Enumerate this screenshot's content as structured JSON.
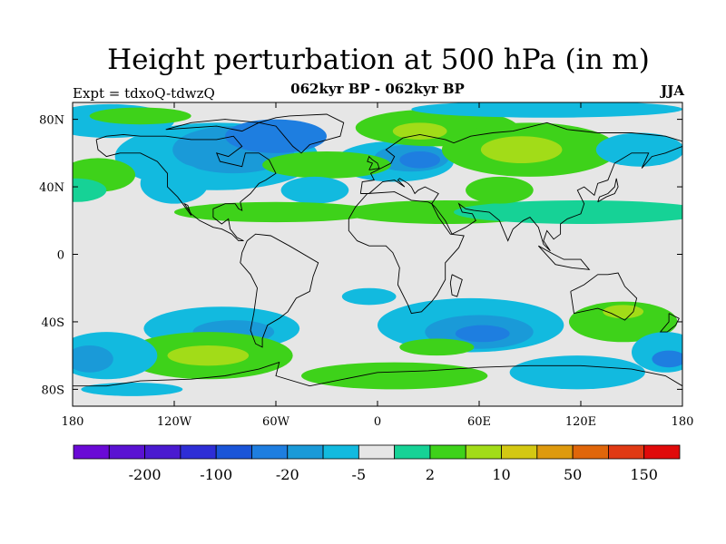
{
  "title": "Height perturbation at 500 hPa (in m)",
  "subtitle": "062kyr BP - 062kyr BP",
  "left_label": "Expt = tdxoQ-tdwzQ",
  "right_label": "JJA",
  "axes": {
    "lon_ticks": [
      {
        "lon": -180,
        "label": "180"
      },
      {
        "lon": -120,
        "label": "120W"
      },
      {
        "lon": -60,
        "label": "60W"
      },
      {
        "lon": 0,
        "label": "0"
      },
      {
        "lon": 60,
        "label": "60E"
      },
      {
        "lon": 120,
        "label": "120E"
      },
      {
        "lon": 180,
        "label": "180"
      }
    ],
    "lat_ticks": [
      {
        "lat": 80,
        "label": "80N"
      },
      {
        "lat": 40,
        "label": "40N"
      },
      {
        "lat": 0,
        "label": "0"
      },
      {
        "lat": -40,
        "label": "40S"
      },
      {
        "lat": -80,
        "label": "80S"
      }
    ],
    "lon_range": [
      -180,
      180
    ],
    "lat_range": [
      -90,
      90
    ]
  },
  "colorbar": {
    "colors": [
      "#6a0ad6",
      "#5a12d2",
      "#4a1ad0",
      "#2e2ed6",
      "#1a55d8",
      "#1e7ee0",
      "#1a9ad8",
      "#12badf",
      "#e6e6e6",
      "#16d296",
      "#3ed21a",
      "#a2dc18",
      "#d4c812",
      "#de9a0e",
      "#e0660a",
      "#e03a14",
      "#e00a0a"
    ],
    "labels": [
      {
        "after_box": 2,
        "text": "-200"
      },
      {
        "after_box": 4,
        "text": "-100"
      },
      {
        "after_box": 6,
        "text": "-20"
      },
      {
        "after_box": 8,
        "text": "-5"
      },
      {
        "after_box": 10,
        "text": "2"
      },
      {
        "after_box": 12,
        "text": "10"
      },
      {
        "after_box": 14,
        "text": "50"
      },
      {
        "after_box": 16,
        "text": "150"
      }
    ]
  },
  "fields": {
    "background": "#e6e6e6",
    "neg_light": "#12badf",
    "neg_mid": "#1a9ad8",
    "neg_dark": "#1e7ee0",
    "neg_darker": "#1a55d8",
    "pos_light": "#16d296",
    "pos_mid": "#3ed21a",
    "pos_strong": "#a2dc18",
    "pos_max": "#d4c812"
  }
}
